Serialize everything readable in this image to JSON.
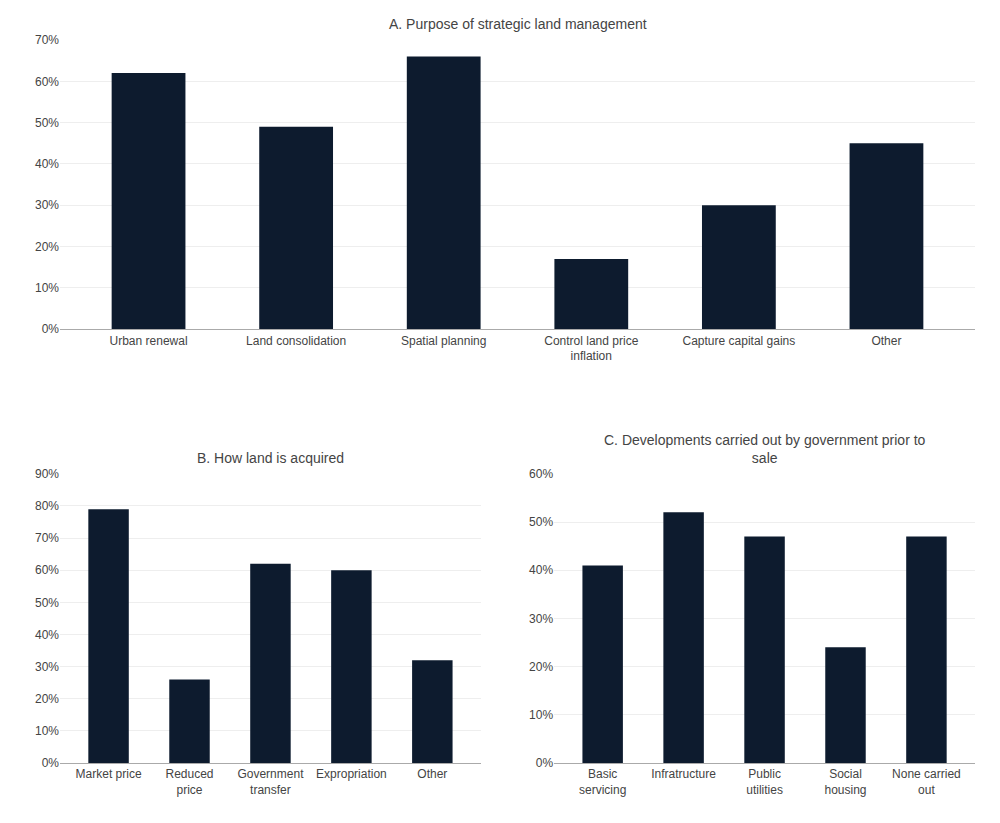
{
  "chart_data": [
    {
      "type": "bar",
      "title": "A. Purpose of strategic land management",
      "categories": [
        "Urban renewal",
        "Land consolidation",
        "Spatial planning",
        "Control land price\ninflation",
        "Capture capital gains",
        "Other"
      ],
      "values": [
        62,
        49,
        66,
        17,
        30,
        45
      ],
      "color": "#0d1b2e",
      "ylim": [
        0,
        70
      ],
      "yticks": [
        {
          "value": 0,
          "label": "0%"
        },
        {
          "value": 10,
          "label": "10%"
        },
        {
          "value": 20,
          "label": "20%"
        },
        {
          "value": 30,
          "label": "30%"
        },
        {
          "value": 40,
          "label": "40%"
        },
        {
          "value": 50,
          "label": "50%"
        },
        {
          "value": 60,
          "label": "60%"
        },
        {
          "value": 70,
          "label": "70%"
        }
      ],
      "grid": true
    },
    {
      "type": "bar",
      "title": "B. How land is acquired",
      "categories": [
        "Market price",
        "Reduced\nprice",
        "Government\ntransfer",
        "Expropriation",
        "Other"
      ],
      "values": [
        79,
        26,
        62,
        60,
        32
      ],
      "color": "#0d1b2e",
      "ylim": [
        0,
        90
      ],
      "yticks": [
        {
          "value": 0,
          "label": "0%"
        },
        {
          "value": 10,
          "label": "10%"
        },
        {
          "value": 20,
          "label": "20%"
        },
        {
          "value": 30,
          "label": "30%"
        },
        {
          "value": 40,
          "label": "40%"
        },
        {
          "value": 50,
          "label": "50%"
        },
        {
          "value": 60,
          "label": "60%"
        },
        {
          "value": 70,
          "label": "70%"
        },
        {
          "value": 80,
          "label": "80%"
        },
        {
          "value": 90,
          "label": "90%"
        }
      ],
      "grid": true
    },
    {
      "type": "bar",
      "title": "C. Developments carried out by government prior to\nsale",
      "categories": [
        "Basic\nservicing",
        "Infratructure",
        "Public\nutilities",
        "Social\nhousing",
        "None carried\nout"
      ],
      "values": [
        41,
        52,
        47,
        24,
        47
      ],
      "color": "#0d1b2e",
      "ylim": [
        0,
        60
      ],
      "yticks": [
        {
          "value": 0,
          "label": "0%"
        },
        {
          "value": 10,
          "label": "10%"
        },
        {
          "value": 20,
          "label": "20%"
        },
        {
          "value": 30,
          "label": "30%"
        },
        {
          "value": 40,
          "label": "40%"
        },
        {
          "value": 50,
          "label": "50%"
        },
        {
          "value": 60,
          "label": "60%"
        }
      ],
      "grid": true
    }
  ]
}
